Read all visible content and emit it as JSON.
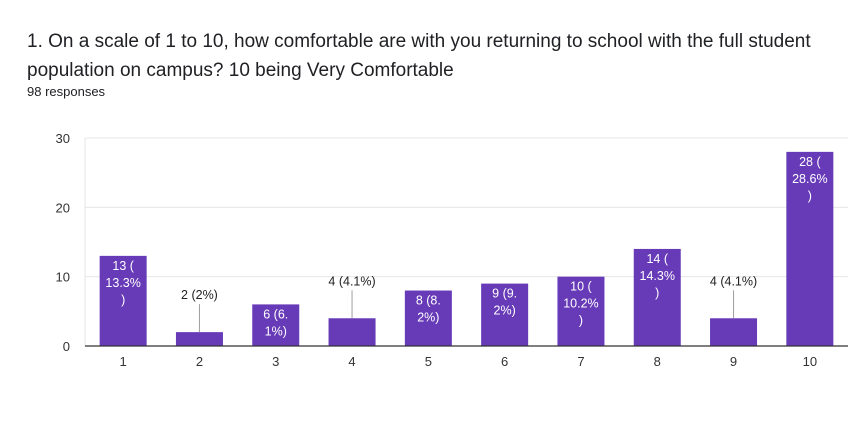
{
  "question": {
    "title": "1. On a scale of 1 to 10, how comfortable are with you returning to school with the full student population on campus? 10 being Very Comfortable",
    "responses": "98 responses"
  },
  "colors": {
    "bar": "#673ab7",
    "grid": "#e6e6e6",
    "axis": "#333333"
  },
  "chart_data": {
    "type": "bar",
    "categories": [
      "1",
      "2",
      "3",
      "4",
      "5",
      "6",
      "7",
      "8",
      "9",
      "10"
    ],
    "values": [
      13,
      2,
      6,
      4,
      8,
      9,
      10,
      14,
      4,
      28
    ],
    "data_labels": [
      [
        "13 (",
        "13.3%",
        ")"
      ],
      [
        "2 (2%)"
      ],
      [
        "6 (6.",
        "1%)"
      ],
      [
        "4 (4.1%)"
      ],
      [
        "8 (8.",
        "2%)"
      ],
      [
        "9 (9.",
        "2%)"
      ],
      [
        "10 (",
        "10.2%",
        ")"
      ],
      [
        "14 (",
        "14.3%",
        ")"
      ],
      [
        "4 (4.1%)"
      ],
      [
        "28 (",
        "28.6%",
        ")"
      ]
    ],
    "label_inside": [
      true,
      false,
      true,
      false,
      true,
      true,
      true,
      true,
      false,
      true
    ],
    "yticks": [
      0,
      10,
      20,
      30
    ],
    "ylim": [
      0,
      30
    ],
    "grid": true,
    "xlabel": "",
    "ylabel": ""
  }
}
